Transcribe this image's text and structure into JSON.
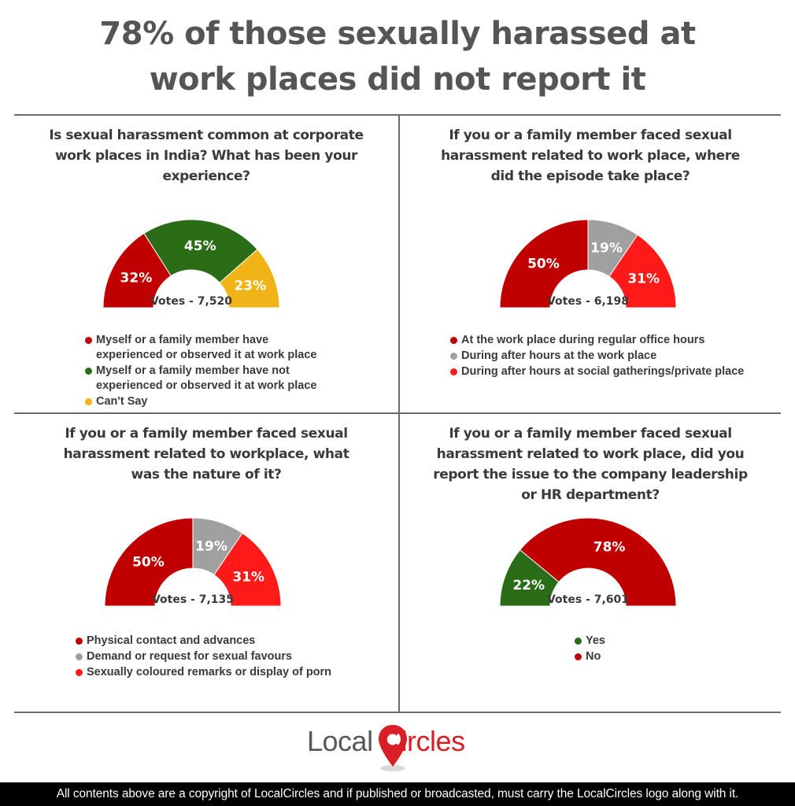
{
  "title": {
    "line1": "78% of those sexually harassed at",
    "line2": "work places did not report it"
  },
  "colors": {
    "dark_red": "#c00000",
    "green": "#2b6d17",
    "yellow": "#f0b418",
    "gray": "#a0a0a0",
    "bright_red": "#ff1a1a"
  },
  "chart_data": [
    {
      "type": "pie",
      "variant": "half-donut",
      "question": [
        "Is sexual harassment common at corporate",
        "work places in India? What has been your",
        "experience?"
      ],
      "votes_label": "Votes - 7,520",
      "series": [
        {
          "label": [
            "Myself or a family member have",
            "experienced or observed it at work place"
          ],
          "value": 32,
          "display": "32%",
          "color": "#c00000"
        },
        {
          "label": [
            "Myself or a family member have not",
            "experienced or observed it at work place"
          ],
          "value": 45,
          "display": "45%",
          "color": "#2b6d17"
        },
        {
          "label": [
            "Can't Say"
          ],
          "value": 23,
          "display": "23%",
          "color": "#f0b418"
        }
      ]
    },
    {
      "type": "pie",
      "variant": "half-donut",
      "question": [
        "If you or a family member faced sexual",
        "harassment related to work place, where",
        "did the episode take place?"
      ],
      "votes_label": "Votes - 6,198",
      "series": [
        {
          "label": [
            "At the work place during regular office hours"
          ],
          "value": 50,
          "display": "50%",
          "color": "#c00000"
        },
        {
          "label": [
            "During after hours at the work place"
          ],
          "value": 19,
          "display": "19%",
          "color": "#a0a0a0"
        },
        {
          "label": [
            "During after hours at social gatherings/private place"
          ],
          "value": 31,
          "display": "31%",
          "color": "#ff1a1a"
        }
      ]
    },
    {
      "type": "pie",
      "variant": "half-donut",
      "question": [
        "If you or a family member faced sexual",
        "harassment related to workplace, what",
        "was the nature of it?"
      ],
      "votes_label": "Votes - 7,135",
      "series": [
        {
          "label": [
            "Physical contact and advances"
          ],
          "value": 50,
          "display": "50%",
          "color": "#c00000"
        },
        {
          "label": [
            "Demand or request for sexual favours"
          ],
          "value": 19,
          "display": "19%",
          "color": "#a0a0a0"
        },
        {
          "label": [
            "Sexually coloured remarks or display of porn"
          ],
          "value": 31,
          "display": "31%",
          "color": "#ff1a1a"
        }
      ]
    },
    {
      "type": "pie",
      "variant": "half-donut",
      "question": [
        "If you or a family member faced sexual",
        "harassment related to work place, did you",
        "report the issue to the company leadership",
        "or HR department?"
      ],
      "votes_label": "Votes - 7,601",
      "series": [
        {
          "label": [
            "Yes"
          ],
          "value": 22,
          "display": "22%",
          "color": "#2b6d17"
        },
        {
          "label": [
            "No"
          ],
          "value": 78,
          "display": "78%",
          "color": "#c00000"
        }
      ]
    }
  ],
  "logo": {
    "part1": "Local",
    "part2": "ircles",
    "name": "LocalCircles"
  },
  "footer": "All contents above are a copyright of LocalCircles and if published or broadcasted, must carry the LocalCircles logo along with it."
}
